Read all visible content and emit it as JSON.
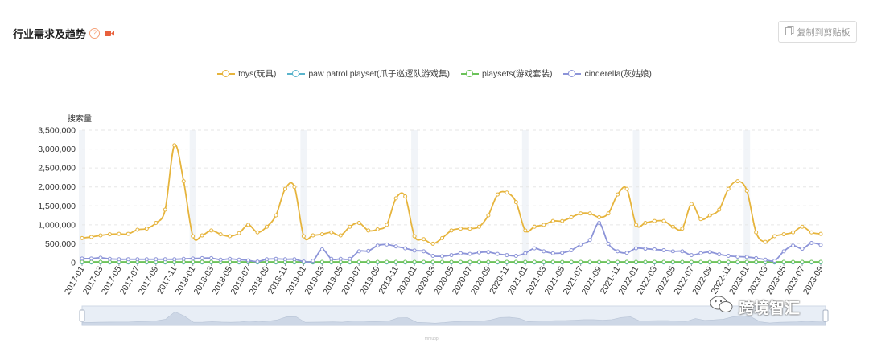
{
  "header": {
    "title": "行业需求及趋势",
    "help_icon": "question-circle-icon",
    "video_icon": "video-camera-icon"
  },
  "toolbar": {
    "copy_label": "复制到剪贴板",
    "copy_icon": "copy-icon"
  },
  "zoom": {
    "label": "thmuop"
  },
  "watermark": {
    "text": "跨境智汇",
    "icon": "wechat-icon"
  },
  "chart_data": {
    "type": "line",
    "ylabel": "搜索量",
    "ylim": [
      0,
      3500000
    ],
    "yticks": [
      "0",
      "500,000",
      "1,000,000",
      "1,500,000",
      "2,000,000",
      "2,500,000",
      "3,000,000",
      "3,500,000"
    ],
    "x": [
      "2017-01",
      "2017-02",
      "2017-03",
      "2017-04",
      "2017-05",
      "2017-06",
      "2017-07",
      "2017-08",
      "2017-09",
      "2017-10",
      "2017-11",
      "2017-12",
      "2018-01",
      "2018-02",
      "2018-03",
      "2018-04",
      "2018-05",
      "2018-06",
      "2018-07",
      "2018-08",
      "2018-09",
      "2018-10",
      "2018-11",
      "2018-12",
      "2019-01",
      "2019-02",
      "2019-03",
      "2019-04",
      "2019-05",
      "2019-06",
      "2019-07",
      "2019-08",
      "2019-09",
      "2019-10",
      "2019-11",
      "2019-12",
      "2020-01",
      "2020-02",
      "2020-03",
      "2020-04",
      "2020-05",
      "2020-06",
      "2020-07",
      "2020-08",
      "2020-09",
      "2020-10",
      "2020-11",
      "2020-12",
      "2021-01",
      "2021-02",
      "2021-03",
      "2021-04",
      "2021-05",
      "2021-06",
      "2021-07",
      "2021-08",
      "2021-09",
      "2021-10",
      "2021-11",
      "2021-12",
      "2022-01",
      "2022-02",
      "2022-03",
      "2022-04",
      "2022-05",
      "2022-06",
      "2022-07",
      "2022-08",
      "2022-09",
      "2022-10",
      "2022-11",
      "2022-12",
      "2023-01",
      "2023-02",
      "2023-03",
      "2023-04",
      "2023-05",
      "2023-06",
      "2023-07",
      "2023-08",
      "2023-09"
    ],
    "xticks_shown": [
      "2017-01",
      "2017-03",
      "2017-05",
      "2017-07",
      "2017-09",
      "2017-11",
      "2018-01",
      "2018-03",
      "2018-05",
      "2018-07",
      "2018-09",
      "2018-11",
      "2019-01",
      "2019-03",
      "2019-05",
      "2019-07",
      "2019-09",
      "2019-11",
      "2020-01",
      "2020-03",
      "2020-05",
      "2020-07",
      "2020-09",
      "2020-11",
      "2021-01",
      "2021-03",
      "2021-05",
      "2021-07",
      "2021-09",
      "2021-11",
      "2022-01",
      "2022-03",
      "2022-05",
      "2022-07",
      "2022-09",
      "2022-11",
      "2023-01",
      "2023-03",
      "2023-05",
      "2023-07",
      "2023-09"
    ],
    "shaded_months": [
      "2017-01",
      "2018-01",
      "2019-01",
      "2020-01",
      "2021-01",
      "2022-01",
      "2023-01"
    ],
    "grid": "horizontal dashed",
    "legend_position": "top-center",
    "series": [
      {
        "name": "toys(玩具)",
        "color": "#e6b43c",
        "values": [
          650000,
          680000,
          720000,
          750000,
          760000,
          760000,
          870000,
          900000,
          1050000,
          1400000,
          3100000,
          2150000,
          700000,
          720000,
          850000,
          750000,
          700000,
          780000,
          1000000,
          800000,
          950000,
          1250000,
          1950000,
          2000000,
          700000,
          720000,
          750000,
          800000,
          720000,
          950000,
          1050000,
          850000,
          880000,
          1000000,
          1700000,
          1750000,
          700000,
          620000,
          500000,
          650000,
          850000,
          900000,
          900000,
          950000,
          1250000,
          1800000,
          1850000,
          1600000,
          850000,
          950000,
          1000000,
          1100000,
          1100000,
          1200000,
          1300000,
          1300000,
          1200000,
          1300000,
          1800000,
          1950000,
          1000000,
          1050000,
          1100000,
          1100000,
          950000,
          900000,
          1550000,
          1150000,
          1250000,
          1400000,
          1950000,
          2150000,
          1900000,
          800000,
          550000,
          700000,
          750000,
          800000,
          950000,
          800000,
          760000
        ]
      },
      {
        "name": "paw patrol playset(爪子巡逻队游戏集)",
        "color": "#5ab4cc",
        "values": [
          5000,
          5000,
          5000,
          5000,
          5000,
          5000,
          5000,
          5000,
          5000,
          5000,
          5000,
          5000,
          5000,
          5000,
          5000,
          5000,
          5000,
          5000,
          5000,
          5000,
          5000,
          5000,
          5000,
          5000,
          5000,
          5000,
          5000,
          5000,
          5000,
          5000,
          5000,
          5000,
          5000,
          5000,
          5000,
          5000,
          5000,
          5000,
          5000,
          5000,
          5000,
          5000,
          5000,
          5000,
          5000,
          5000,
          5000,
          5000,
          5000,
          5000,
          5000,
          5000,
          5000,
          5000,
          5000,
          5000,
          5000,
          5000,
          5000,
          5000,
          5000,
          5000,
          5000,
          5000,
          5000,
          5000,
          5000,
          5000,
          5000,
          5000,
          5000,
          5000,
          5000,
          5000,
          5000,
          5000,
          5000,
          5000,
          5000,
          5000,
          5000
        ]
      },
      {
        "name": "playsets(游戏套装)",
        "color": "#6bc25a",
        "values": [
          20000,
          20000,
          20000,
          20000,
          20000,
          20000,
          20000,
          20000,
          20000,
          20000,
          20000,
          20000,
          20000,
          20000,
          20000,
          20000,
          20000,
          20000,
          20000,
          20000,
          20000,
          20000,
          20000,
          20000,
          20000,
          20000,
          20000,
          20000,
          20000,
          20000,
          20000,
          20000,
          20000,
          20000,
          20000,
          20000,
          20000,
          20000,
          20000,
          20000,
          20000,
          20000,
          20000,
          20000,
          20000,
          20000,
          20000,
          20000,
          20000,
          20000,
          20000,
          20000,
          20000,
          20000,
          20000,
          20000,
          20000,
          20000,
          20000,
          20000,
          20000,
          20000,
          20000,
          20000,
          20000,
          20000,
          20000,
          20000,
          20000,
          20000,
          20000,
          20000,
          20000,
          20000,
          20000,
          20000,
          20000,
          20000,
          20000,
          20000,
          20000
        ]
      },
      {
        "name": "cinderella(灰姑娘)",
        "color": "#8c94d8",
        "values": [
          110000,
          110000,
          130000,
          100000,
          90000,
          90000,
          90000,
          90000,
          90000,
          90000,
          90000,
          100000,
          110000,
          120000,
          120000,
          80000,
          100000,
          80000,
          60000,
          30000,
          90000,
          100000,
          90000,
          90000,
          30000,
          50000,
          350000,
          100000,
          100000,
          100000,
          300000,
          310000,
          450000,
          480000,
          430000,
          380000,
          320000,
          300000,
          180000,
          170000,
          200000,
          250000,
          230000,
          270000,
          280000,
          230000,
          200000,
          180000,
          250000,
          380000,
          300000,
          250000,
          260000,
          330000,
          480000,
          600000,
          1050000,
          500000,
          300000,
          260000,
          380000,
          370000,
          350000,
          330000,
          300000,
          300000,
          200000,
          250000,
          280000,
          220000,
          180000,
          160000,
          150000,
          120000,
          80000,
          50000,
          300000,
          450000,
          370000,
          520000,
          470000
        ]
      }
    ]
  }
}
